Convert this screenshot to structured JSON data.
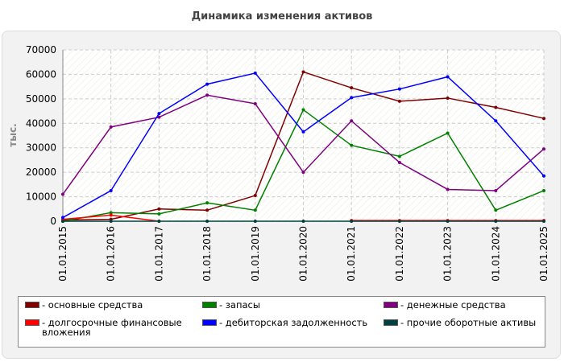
{
  "chart_data": {
    "type": "line",
    "title": "Динамика изменения активов",
    "ylabel": "тыс.",
    "categories": [
      "01.01.2015",
      "01.01.2016",
      "01.01.2017",
      "01.01.2018",
      "01.01.2019",
      "01.01.2020",
      "01.01.2021",
      "01.01.2022",
      "01.01.2023",
      "01.01.2024",
      "01.01.2025"
    ],
    "ylim": [
      0,
      70000
    ],
    "yticks": [
      0,
      10000,
      20000,
      30000,
      40000,
      50000,
      60000,
      70000
    ],
    "grid": true,
    "series": [
      {
        "name": "- основные средства",
        "color": "#800000",
        "values": [
          500,
          800,
          5000,
          4500,
          10500,
          61000,
          54500,
          49000,
          50300,
          46500,
          42000
        ]
      },
      {
        "name": "- запасы",
        "color": "#008000",
        "values": [
          0,
          3500,
          3000,
          7500,
          4500,
          45500,
          31000,
          26500,
          36000,
          4500,
          12500
        ]
      },
      {
        "name": "- денежные средства",
        "color": "#800080",
        "values": [
          11000,
          38500,
          42500,
          51500,
          48000,
          20000,
          41000,
          24000,
          13000,
          12500,
          29500
        ]
      },
      {
        "name": "- долгосрочные финансовые вложения",
        "color": "#ff0000",
        "values": [
          800,
          2500,
          0,
          null,
          null,
          null,
          300,
          300,
          300,
          300,
          300
        ]
      },
      {
        "name": "- дебиторская задолженность",
        "color": "#0000ff",
        "values": [
          1500,
          12500,
          44000,
          56000,
          60500,
          36500,
          50500,
          54000,
          59000,
          41000,
          18500
        ]
      },
      {
        "name": "- прочие оборотные активы",
        "color": "#004040",
        "values": [
          0,
          0,
          0,
          0,
          0,
          0,
          0,
          0,
          0,
          0,
          0
        ]
      }
    ]
  }
}
